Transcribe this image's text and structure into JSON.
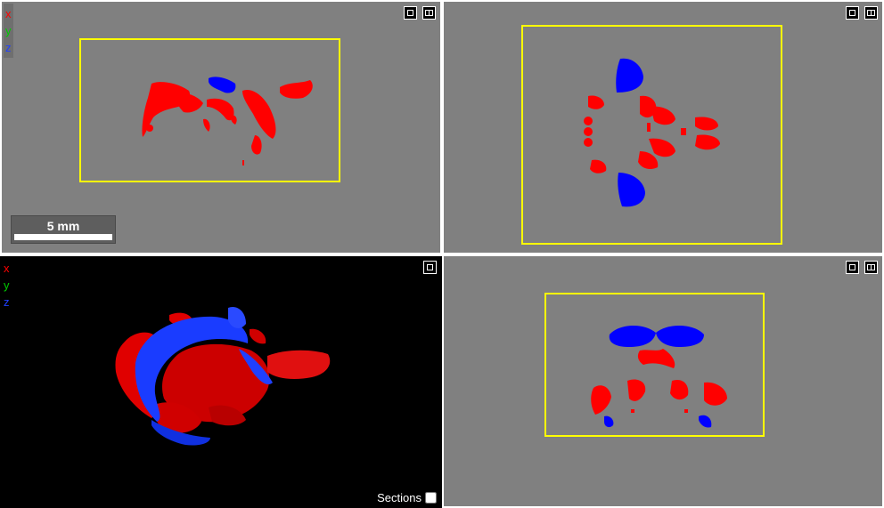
{
  "axes": {
    "x": "x",
    "y": "y",
    "z": "z"
  },
  "colors": {
    "axis_x": "#ff0000",
    "axis_y": "#00cc00",
    "axis_z": "#2040ff",
    "structure_a": "#ff0000",
    "structure_b": "#0000ff",
    "bounding_box": "#ffff00",
    "viewport_bg": "#808080",
    "render_bg": "#000000"
  },
  "viewports": {
    "top_left": {
      "maximize_icon": "maximize-icon",
      "split_icon": "split-view-icon"
    },
    "top_right": {
      "maximize_icon": "maximize-icon",
      "split_icon": "split-view-icon"
    },
    "bottom_left": {
      "maximize_icon": "maximize-icon"
    },
    "bottom_right": {
      "maximize_icon": "maximize-icon",
      "split_icon": "split-view-icon"
    }
  },
  "scalebar": {
    "label": "5 mm"
  },
  "render3d": {
    "sections_label": "Sections",
    "sections_checked": false
  }
}
